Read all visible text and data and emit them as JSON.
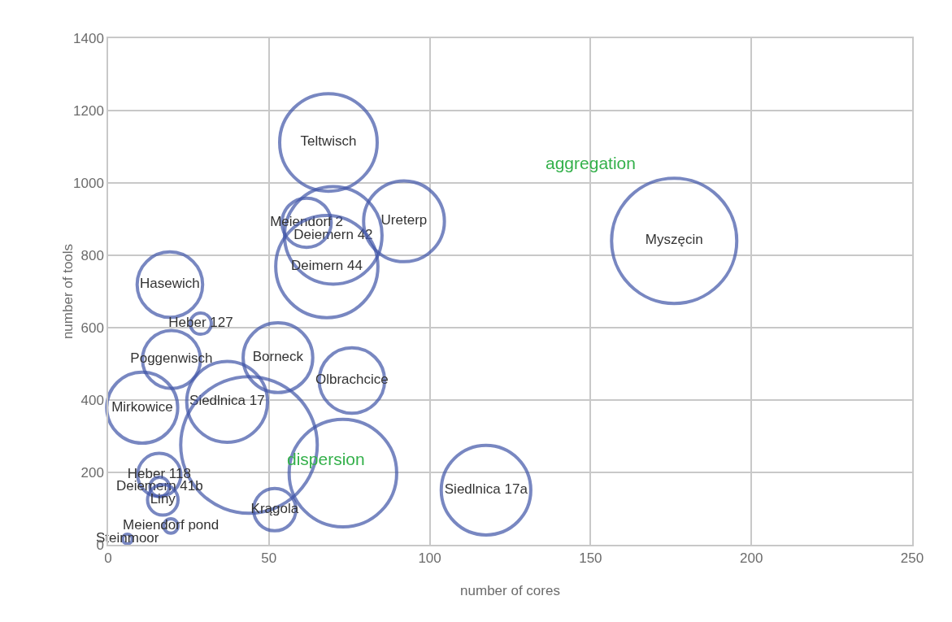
{
  "chart_data": {
    "type": "bubble",
    "xlabel": "number of cores",
    "ylabel": "number of tools",
    "series": [
      {
        "name": "Teltwisch",
        "color": "#4055a8",
        "x": [
          68.5
        ],
        "values": [
          1112
        ],
        "sizes": [
          0.51
        ]
      },
      {
        "name": "Deiemern 42",
        "color": "#4055a8",
        "x": [
          70
        ],
        "values": [
          855
        ],
        "sizes": [
          0.51
        ]
      },
      {
        "name": "Meiendorf 2",
        "color": "#4055a8",
        "x": [
          61.7
        ],
        "values": [
          890
        ],
        "sizes": [
          0.13
        ]
      },
      {
        "name": "Deimern 44",
        "color": "#4055a8",
        "x": [
          68
        ],
        "values": [
          769
        ],
        "sizes": [
          0.56
        ]
      },
      {
        "name": "Ureterp",
        "color": "#4055a8",
        "x": [
          92
        ],
        "values": [
          894
        ],
        "sizes": [
          0.35
        ]
      },
      {
        "name": "Myszęcin",
        "color": "#4055a8",
        "x": [
          176
        ],
        "values": [
          840
        ],
        "sizes": [
          0.84
        ]
      },
      {
        "name": "Hasewich",
        "color": "#4055a8",
        "x": [
          19.2
        ],
        "values": [
          719
        ],
        "sizes": [
          0.23
        ]
      },
      {
        "name": "Heber 127",
        "color": "#4055a8",
        "x": [
          28.8
        ],
        "values": [
          611
        ],
        "sizes": [
          0.024
        ]
      },
      {
        "name": "Poggenwisch",
        "color": "#4055a8",
        "x": [
          19.7
        ],
        "values": [
          512
        ],
        "sizes": [
          0.18
        ]
      },
      {
        "name": "Borneck",
        "color": "#4055a8",
        "x": [
          52.8
        ],
        "values": [
          517
        ],
        "sizes": [
          0.26
        ]
      },
      {
        "name": "Olbrachcice",
        "color": "#4055a8",
        "x": [
          75.8
        ],
        "values": [
          454
        ],
        "sizes": [
          0.23
        ]
      },
      {
        "name": "Mirkowice",
        "color": "#4055a8",
        "x": [
          10.6
        ],
        "values": [
          379
        ],
        "sizes": [
          0.27
        ]
      },
      {
        "name": "Siedlnica 17",
        "color": "#4055a8",
        "x": [
          37
        ],
        "values": [
          395
        ],
        "sizes": [
          0.35
        ]
      },
      {
        "color": "#4055a8",
        "x": [
          43.8
        ],
        "values": [
          276
        ],
        "sizes": [
          1
        ]
      },
      {
        "color": "#4055a8",
        "x": [
          73
        ],
        "values": [
          198
        ],
        "sizes": [
          0.62
        ]
      },
      {
        "name": "Krągola",
        "color": "#4055a8",
        "x": [
          51.8
        ],
        "values": [
          97
        ],
        "sizes": [
          0.096
        ]
      },
      {
        "name": "Heber 118",
        "color": "#4055a8",
        "x": [
          15.9
        ],
        "values": [
          193
        ],
        "sizes": [
          0.1
        ]
      },
      {
        "name": "Deiemern 41b",
        "color": "#4055a8",
        "x": [
          16
        ],
        "values": [
          160
        ],
        "sizes": [
          0.02
        ]
      },
      {
        "name": "Liny",
        "color": "#4055a8",
        "x": [
          17
        ],
        "values": [
          124
        ],
        "sizes": [
          0.05
        ]
      },
      {
        "name": "Meiendorf pond",
        "color": "#4055a8",
        "x": [
          19.5
        ],
        "values": [
          52
        ],
        "sizes": [
          0.011
        ]
      },
      {
        "name": "Steinmoor",
        "color": "#4055a8",
        "x": [
          6
        ],
        "values": [
          16
        ],
        "sizes": [
          0.005
        ]
      },
      {
        "name": "Siedlnica 17a",
        "color": "#4055a8",
        "x": [
          117.5
        ],
        "values": [
          151
        ],
        "sizes": [
          0.43
        ]
      }
    ],
    "annotations": [
      "aggregation",
      "dispersion"
    ],
    "xlim": [
      0,
      250
    ],
    "xticks": [
      0,
      50,
      100,
      150,
      200,
      250
    ],
    "ylim": [
      0,
      1400
    ],
    "yticks": [
      0,
      200,
      400,
      600,
      800,
      1000,
      1200,
      1400
    ],
    "grid": true
  }
}
